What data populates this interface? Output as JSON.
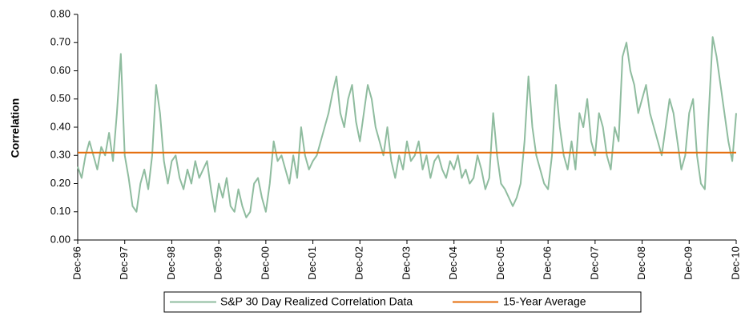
{
  "chart_data": {
    "type": "line",
    "y_label": "Correlation",
    "categories": [
      "Dec-96",
      null,
      null,
      null,
      null,
      null,
      null,
      null,
      null,
      null,
      null,
      null,
      "Dec-97",
      null,
      null,
      null,
      null,
      null,
      null,
      null,
      null,
      null,
      null,
      null,
      "Dec-98",
      null,
      null,
      null,
      null,
      null,
      null,
      null,
      null,
      null,
      null,
      null,
      "Dec-99",
      null,
      null,
      null,
      null,
      null,
      null,
      null,
      null,
      null,
      null,
      null,
      "Dec-00",
      null,
      null,
      null,
      null,
      null,
      null,
      null,
      null,
      null,
      null,
      null,
      "Dec-01",
      null,
      null,
      null,
      null,
      null,
      null,
      null,
      null,
      null,
      null,
      null,
      "Dec-02",
      null,
      null,
      null,
      null,
      null,
      null,
      null,
      null,
      null,
      null,
      null,
      "Dec-03",
      null,
      null,
      null,
      null,
      null,
      null,
      null,
      null,
      null,
      null,
      null,
      "Dec-04",
      null,
      null,
      null,
      null,
      null,
      null,
      null,
      null,
      null,
      null,
      null,
      "Dec-05",
      null,
      null,
      null,
      null,
      null,
      null,
      null,
      null,
      null,
      null,
      null,
      "Dec-06",
      null,
      null,
      null,
      null,
      null,
      null,
      null,
      null,
      null,
      null,
      null,
      "Dec-07",
      null,
      null,
      null,
      null,
      null,
      null,
      null,
      null,
      null,
      null,
      null,
      "Dec-08",
      null,
      null,
      null,
      null,
      null,
      null,
      null,
      null,
      null,
      null,
      null,
      "Dec-09",
      null,
      null,
      null,
      null,
      null,
      null,
      null,
      null,
      null,
      null,
      null,
      "Dec-10"
    ],
    "series": [
      {
        "name": "S&P 30 Day Realized Correlation Data",
        "color": "#8fbc9f",
        "values": [
          0.26,
          0.22,
          0.3,
          0.35,
          0.3,
          0.25,
          0.33,
          0.3,
          0.38,
          0.28,
          0.45,
          0.66,
          0.3,
          0.22,
          0.12,
          0.1,
          0.2,
          0.25,
          0.18,
          0.3,
          0.55,
          0.45,
          0.28,
          0.2,
          0.28,
          0.3,
          0.22,
          0.18,
          0.25,
          0.2,
          0.28,
          0.22,
          0.25,
          0.28,
          0.18,
          0.1,
          0.2,
          0.15,
          0.22,
          0.12,
          0.1,
          0.18,
          0.12,
          0.08,
          0.1,
          0.2,
          0.22,
          0.15,
          0.1,
          0.2,
          0.35,
          0.28,
          0.3,
          0.25,
          0.2,
          0.3,
          0.22,
          0.4,
          0.3,
          0.25,
          0.28,
          0.3,
          0.35,
          0.4,
          0.45,
          0.52,
          0.58,
          0.45,
          0.4,
          0.5,
          0.55,
          0.42,
          0.35,
          0.45,
          0.55,
          0.5,
          0.4,
          0.35,
          0.3,
          0.4,
          0.28,
          0.22,
          0.3,
          0.25,
          0.35,
          0.28,
          0.3,
          0.35,
          0.25,
          0.3,
          0.22,
          0.28,
          0.3,
          0.25,
          0.22,
          0.28,
          0.25,
          0.3,
          0.22,
          0.25,
          0.2,
          0.22,
          0.3,
          0.25,
          0.18,
          0.22,
          0.45,
          0.3,
          0.2,
          0.18,
          0.15,
          0.12,
          0.15,
          0.2,
          0.35,
          0.58,
          0.4,
          0.3,
          0.25,
          0.2,
          0.18,
          0.3,
          0.55,
          0.4,
          0.3,
          0.25,
          0.35,
          0.25,
          0.45,
          0.4,
          0.5,
          0.35,
          0.3,
          0.45,
          0.4,
          0.3,
          0.25,
          0.4,
          0.35,
          0.65,
          0.7,
          0.6,
          0.55,
          0.45,
          0.5,
          0.55,
          0.45,
          0.4,
          0.35,
          0.3,
          0.4,
          0.5,
          0.45,
          0.35,
          0.25,
          0.3,
          0.45,
          0.5,
          0.3,
          0.2,
          0.18,
          0.45,
          0.72,
          0.65,
          0.55,
          0.45,
          0.35,
          0.28,
          0.45
        ]
      }
    ],
    "average": {
      "name": "15-Year Average",
      "value": 0.31,
      "color": "#e46c0a"
    },
    "ylim": [
      0,
      0.8
    ],
    "yticks": [
      {
        "value": 0,
        "label": "0.00"
      },
      {
        "value": 0.1,
        "label": "0.10"
      },
      {
        "value": 0.2,
        "label": "0.20"
      },
      {
        "value": 0.3,
        "label": "0.30"
      },
      {
        "value": 0.4,
        "label": "0.40"
      },
      {
        "value": 0.5,
        "label": "0.50"
      },
      {
        "value": 0.6,
        "label": "0.60"
      },
      {
        "value": 0.7,
        "label": "0.70"
      },
      {
        "value": 0.8,
        "label": "0.80"
      }
    ]
  }
}
